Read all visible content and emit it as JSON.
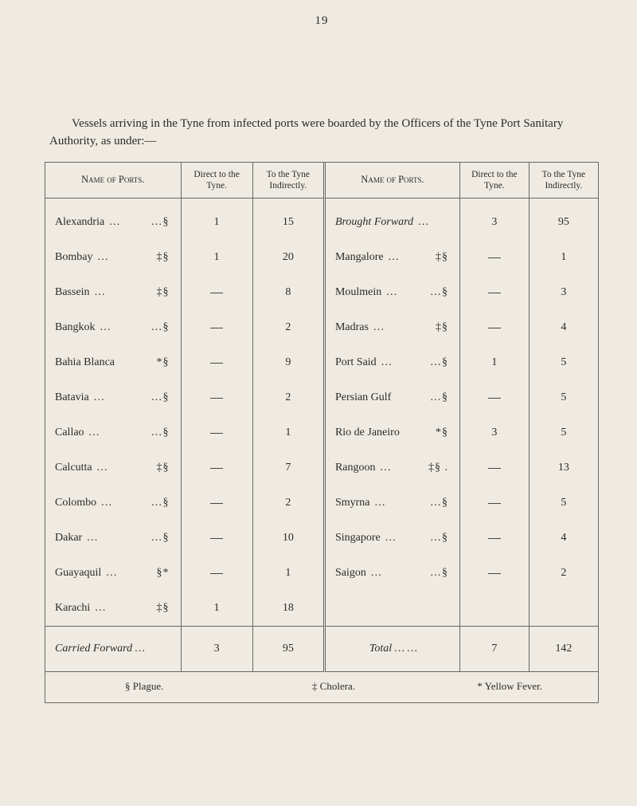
{
  "page_number": "19",
  "intro_text": "Vessels arriving in the Tyne from infected ports were boarded by the Officers of the Tyne Port Sanitary Authority, as under:—",
  "headers": {
    "name": "Name of Ports.",
    "direct": "Direct to the Tyne.",
    "indirect": "To the Tyne Indirectly."
  },
  "left_rows": [
    {
      "port": "Alexandria",
      "dots": "…",
      "sym": "…§",
      "direct": "1",
      "indirect": "15"
    },
    {
      "port": "Bombay",
      "dots": "…",
      "sym": "‡§",
      "direct": "1",
      "indirect": "20"
    },
    {
      "port": "Bassein",
      "dots": "…",
      "sym": "‡§",
      "direct": "—",
      "indirect": "8"
    },
    {
      "port": "Bangkok",
      "dots": "…",
      "sym": "…§",
      "direct": "—",
      "indirect": "2"
    },
    {
      "port": "Bahia Blanca",
      "dots": "",
      "sym": "*§",
      "direct": "—",
      "indirect": "9"
    },
    {
      "port": "Batavia",
      "dots": "…",
      "sym": "…§",
      "direct": "—",
      "indirect": "2"
    },
    {
      "port": "Callao",
      "dots": "…",
      "sym": "…§",
      "direct": "—",
      "indirect": "1"
    },
    {
      "port": "Calcutta",
      "dots": "…",
      "sym": "‡§",
      "direct": "—",
      "indirect": "7"
    },
    {
      "port": "Colombo",
      "dots": "…",
      "sym": "…§",
      "direct": "—",
      "indirect": "2"
    },
    {
      "port": "Dakar",
      "dots": "…",
      "sym": "…§",
      "direct": "—",
      "indirect": "10"
    },
    {
      "port": "Guayaquil",
      "dots": "…",
      "sym": "§*",
      "direct": "—",
      "indirect": "1"
    },
    {
      "port": "Karachi",
      "dots": "…",
      "sym": "‡§",
      "direct": "1",
      "indirect": "18"
    }
  ],
  "right_rows": [
    {
      "port": "Brought Forward",
      "dots": "…",
      "sym": "",
      "italic": true,
      "direct": "3",
      "indirect": "95"
    },
    {
      "port": "Mangalore",
      "dots": "…",
      "sym": "‡§",
      "direct": "—",
      "indirect": "1"
    },
    {
      "port": "Moulmein",
      "dots": "…",
      "sym": "…§",
      "direct": "—",
      "indirect": "3"
    },
    {
      "port": "Madras",
      "dots": "…",
      "sym": "‡§",
      "direct": "—",
      "indirect": "4"
    },
    {
      "port": "Port Said",
      "dots": "…",
      "sym": "…§",
      "direct": "1",
      "indirect": "5"
    },
    {
      "port": "Persian Gulf",
      "dots": "",
      "sym": "…§",
      "direct": "—",
      "indirect": "5"
    },
    {
      "port": "Rio de Janeiro",
      "dots": "",
      "sym": "*§",
      "direct": "3",
      "indirect": "5"
    },
    {
      "port": "Rangoon",
      "dots": "…",
      "sym": "‡§ .",
      "direct": "—",
      "indirect": "13"
    },
    {
      "port": "Smyrna",
      "dots": "…",
      "sym": "…§",
      "direct": "—",
      "indirect": "5"
    },
    {
      "port": "Singapore",
      "dots": "…",
      "sym": "…§",
      "direct": "—",
      "indirect": "4"
    },
    {
      "port": "Saigon",
      "dots": "…",
      "sym": "…§",
      "direct": "—",
      "indirect": "2"
    },
    {
      "port": "",
      "dots": "",
      "sym": "",
      "direct": "",
      "indirect": ""
    }
  ],
  "carried": {
    "left_label": "Carried Forward …",
    "left_direct": "3",
    "left_indirect": "95",
    "right_label": "Total …   …",
    "right_direct": "7",
    "right_indirect": "142"
  },
  "legend": {
    "plague": "§ Plague.",
    "cholera": "‡ Cholera.",
    "yellow": "* Yellow Fever."
  }
}
